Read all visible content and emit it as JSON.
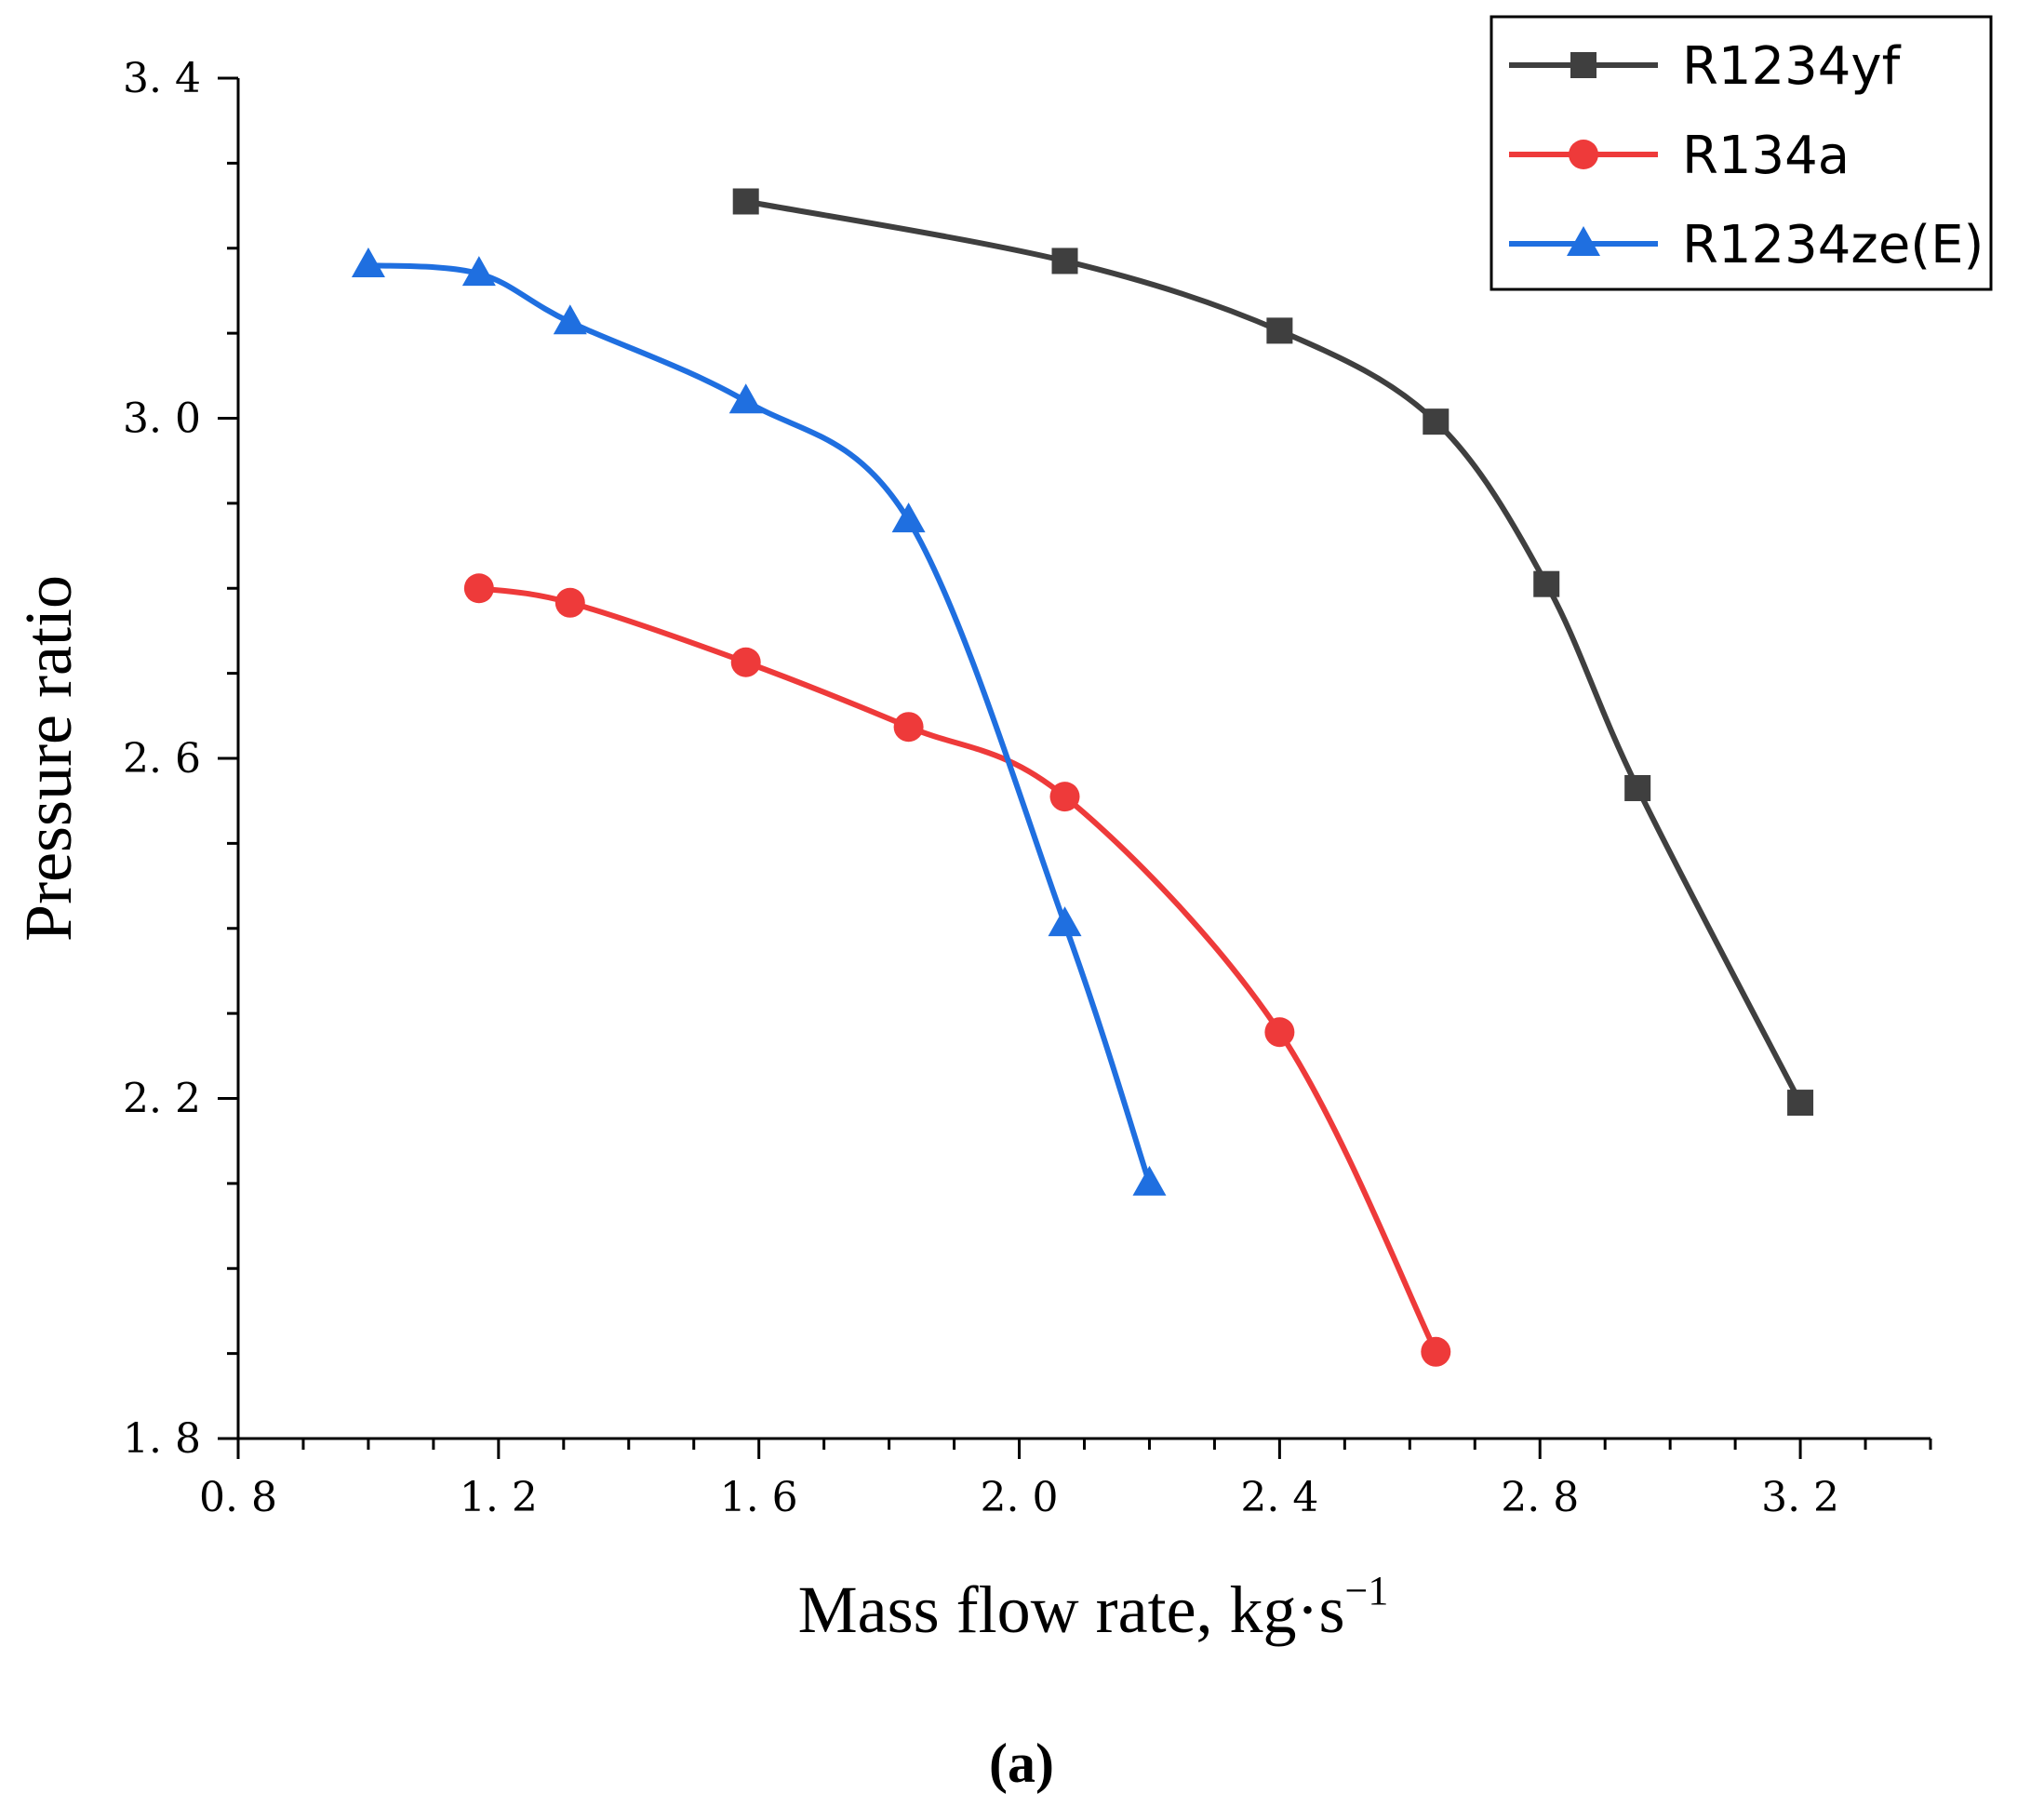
{
  "chart_data": {
    "type": "line",
    "title": "",
    "xlabel": "Mass flow rate, kg·s",
    "xlabel_superscript": "−1",
    "ylabel": "Pressure ratio",
    "xlim": [
      0.8,
      3.4
    ],
    "ylim": [
      1.8,
      3.4
    ],
    "x_major_ticks": [
      0.8,
      1.2,
      1.6,
      2.0,
      2.4,
      2.8,
      3.2
    ],
    "x_tick_labels": [
      "0. 8",
      "1. 2",
      "1. 6",
      "2. 0",
      "2. 4",
      "2. 8",
      "3. 2"
    ],
    "x_minor_step": 0.1,
    "y_major_ticks": [
      1.8,
      2.2,
      2.6,
      3.0,
      3.4
    ],
    "y_tick_labels": [
      "1. 8",
      "2. 2",
      "2. 6",
      "3. 0",
      "3. 4"
    ],
    "y_minor_step": 0.1,
    "grid": false,
    "legend_position": "top-right",
    "panel_label": "(a)",
    "series": [
      {
        "name": "R1234yf",
        "color": "#3f3f3f",
        "marker": "square",
        "x": [
          1.58,
          2.07,
          2.4,
          2.64,
          2.81,
          2.95,
          3.2
        ],
        "y": [
          3.255,
          3.185,
          3.103,
          2.996,
          2.805,
          2.565,
          2.195
        ]
      },
      {
        "name": "R134a",
        "color": "#ee3a3a",
        "marker": "circle",
        "x": [
          1.17,
          1.31,
          1.58,
          1.83,
          2.07,
          2.4,
          2.64
        ],
        "y": [
          2.8,
          2.783,
          2.713,
          2.637,
          2.555,
          2.278,
          1.902
        ]
      },
      {
        "name": "R1234ze(E)",
        "color": "#1f6fe0",
        "marker": "triangle",
        "x": [
          1.0,
          1.17,
          1.31,
          1.58,
          1.83,
          2.07,
          2.2
        ],
        "y": [
          3.18,
          3.17,
          3.113,
          3.02,
          2.88,
          2.405,
          2.1
        ]
      }
    ]
  }
}
